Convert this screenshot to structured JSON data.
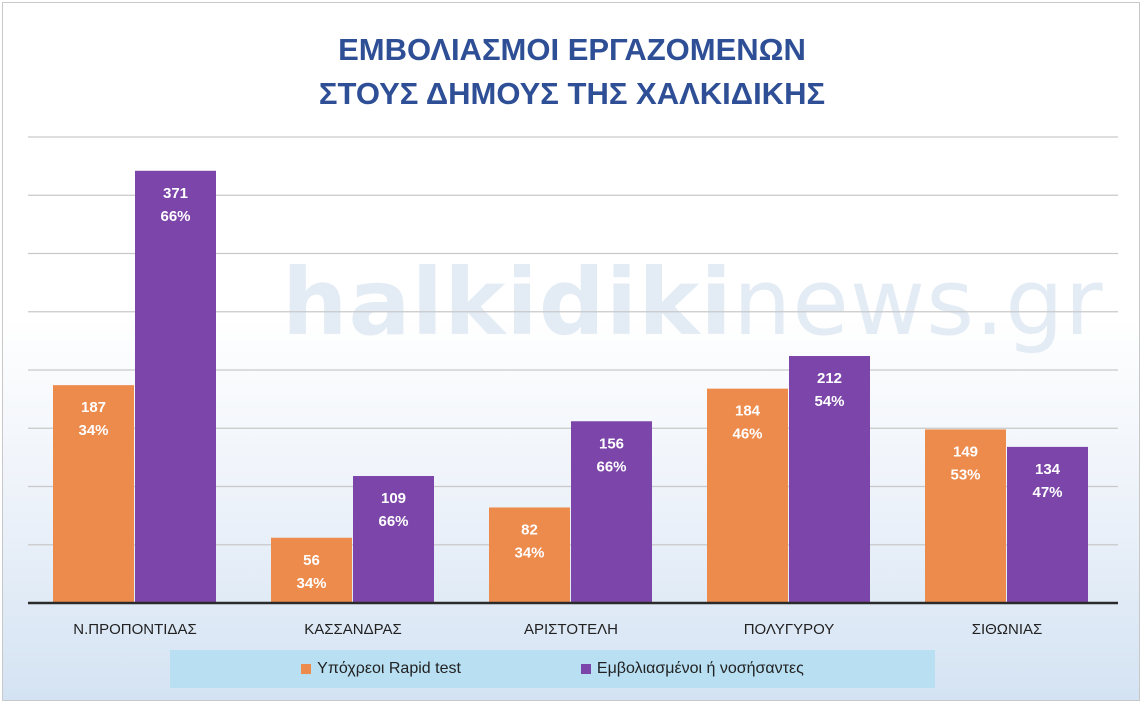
{
  "chart_data": {
    "type": "bar",
    "title_lines": [
      "ΕΜΒΟΛΙΑΣΜΟΙ ΕΡΓΑΖΟΜΕΝΩΝ",
      "ΣΤΟΥΣ ΔΗΜΟΥΣ ΤΗΣ ΧΑΛΚΙΔΙΚΗΣ"
    ],
    "categories": [
      "Ν.ΠΡΟΠΟΝΤΙΔΑΣ",
      "ΚΑΣΣΑΝΔΡΑΣ",
      "ΑΡΙΣΤΟΤΕΛΗ",
      "ΠΟΛΥΓΥΡΟΥ",
      "ΣΙΘΩΝΙΑΣ"
    ],
    "series": [
      {
        "name": "Υπόχρεοι Rapid test",
        "color": "#ed8b4d",
        "values": [
          187,
          56,
          82,
          184,
          149
        ],
        "percent_labels": [
          "34%",
          "34%",
          "34%",
          "46%",
          "53%"
        ]
      },
      {
        "name": "Εμβολιασμένοι ή νοσήσαντες",
        "color": "#7c45a9",
        "values": [
          371,
          109,
          156,
          212,
          134
        ],
        "percent_labels": [
          "66%",
          "66%",
          "66%",
          "54%",
          "47%"
        ]
      }
    ],
    "ylim": [
      0,
      400
    ],
    "grid": true,
    "legend": "bottom"
  },
  "watermark": {
    "bold_part": "halkidiki",
    "light_part": "news.gr"
  }
}
